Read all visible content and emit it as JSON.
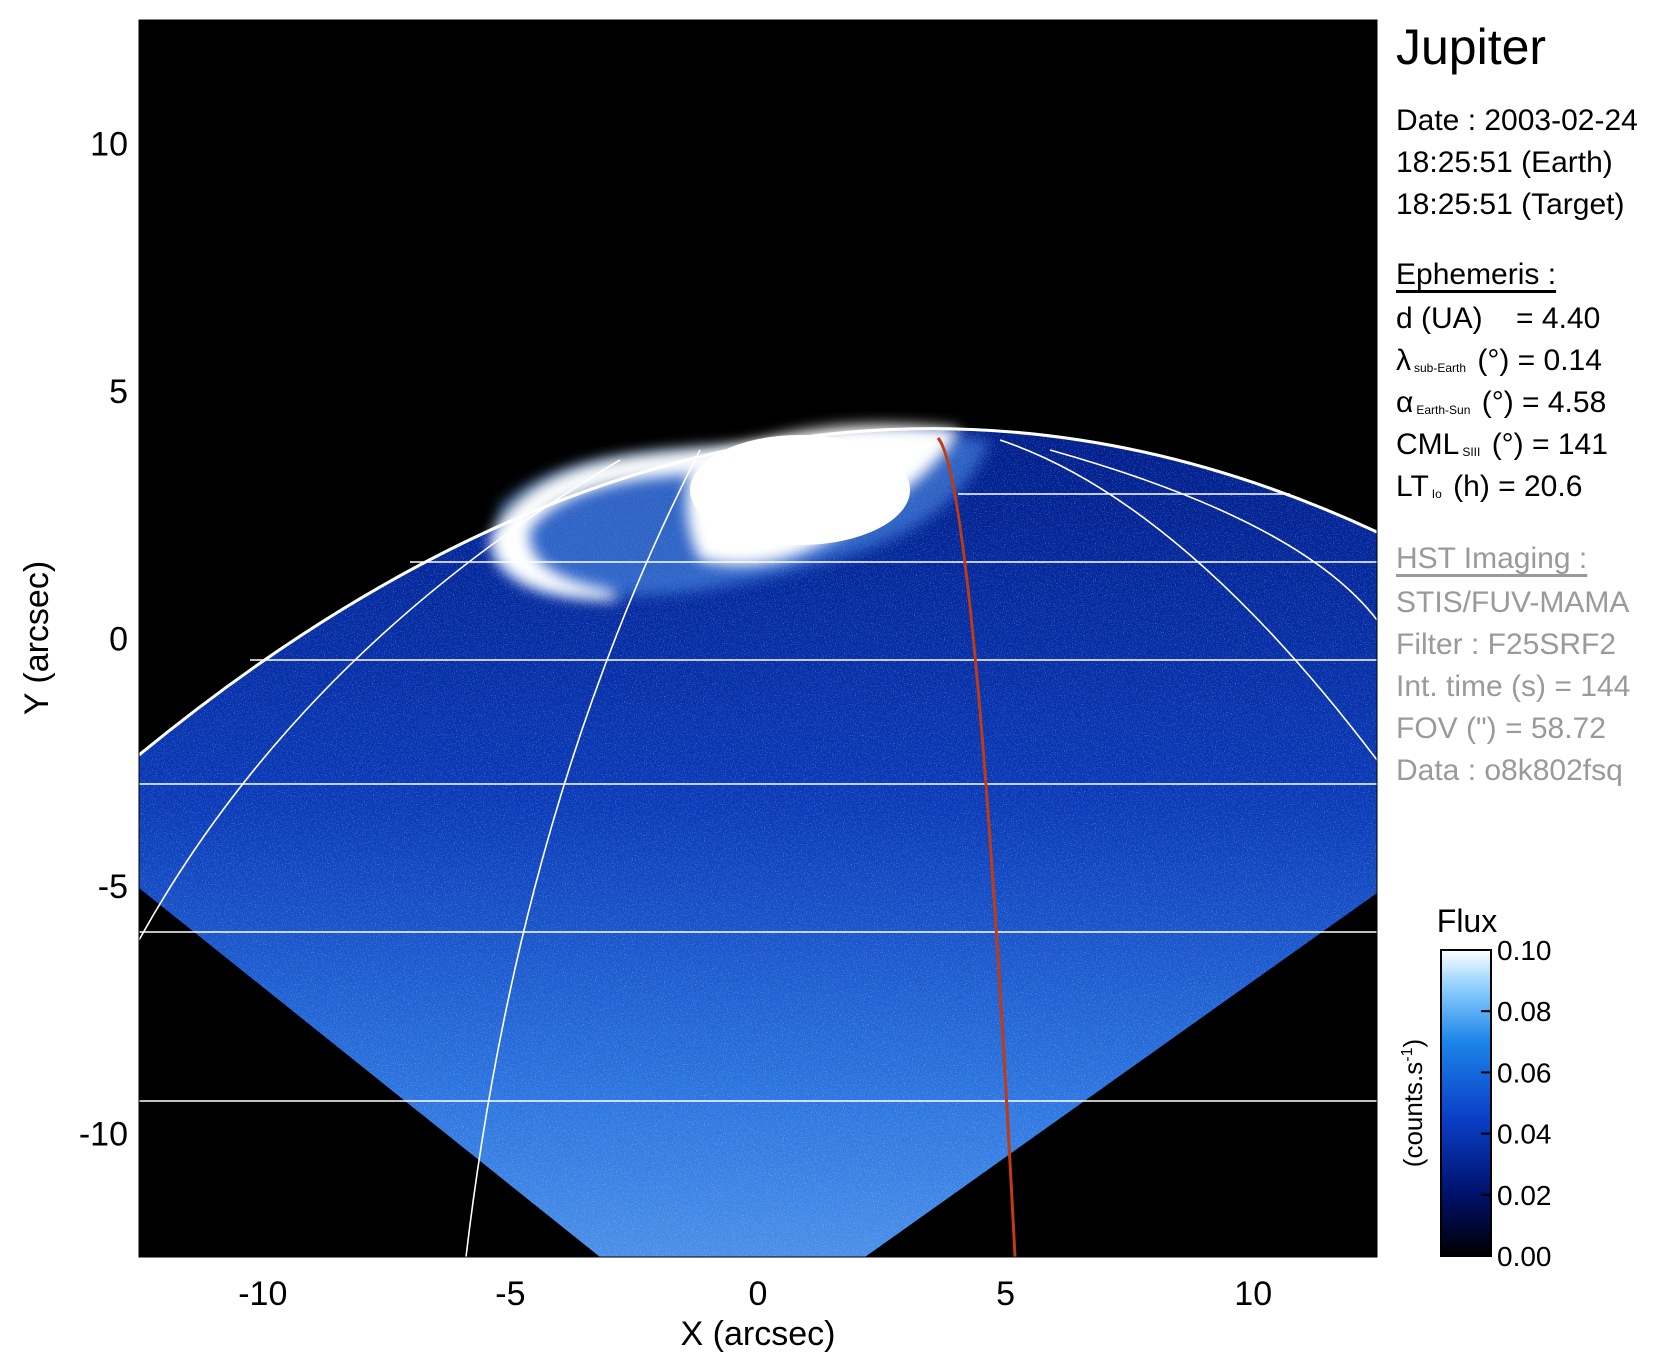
{
  "panel": {
    "planet": "Jupiter",
    "date": "Date : 2003-02-24",
    "time_earth": "18:25:51 (Earth)",
    "time_target": "18:25:51 (Target)",
    "ephemeris_header": "Ephemeris :",
    "ephemeris": [
      {
        "sym": "d (UA)",
        "sub": "",
        "rest": "    = 4.40"
      },
      {
        "sym": "λ",
        "sub": "sub-Earth",
        "rest": " (°) = 0.14"
      },
      {
        "sym": "α",
        "sub": "Earth-Sun",
        "rest": " (°) = 4.58"
      },
      {
        "sym": "CML",
        "sub": "SIII",
        "rest": " (°) = 141"
      },
      {
        "sym": "LT",
        "sub": "Io",
        "rest": " (h) = 20.6"
      }
    ],
    "hst_header": "HST Imaging :",
    "hst": [
      "STIS/FUV-MAMA",
      "Filter : F25SRF2",
      "Int. time (s) = 144",
      "FOV (\") = 58.72",
      "Data : o8k802fsq"
    ]
  },
  "chart_data": {
    "type": "heatmap",
    "title": "",
    "xlabel": "X (arcsec)",
    "ylabel": "Y (arcsec)",
    "xlim": [
      -12.5,
      12.5
    ],
    "ylim": [
      -12.5,
      12.5
    ],
    "xticks": [
      -10,
      -5,
      0,
      5,
      10
    ],
    "yticks": [
      -10,
      -5,
      0,
      5,
      10
    ],
    "colorbar": {
      "title": "Flux",
      "label": "(counts.s-1)",
      "range": [
        0.0,
        0.1
      ],
      "ticks": [
        "0.10",
        "0.08",
        "0.06",
        "0.04",
        "0.02",
        "0.00"
      ],
      "colors": [
        "#000000",
        "#00106a",
        "#0a3fc8",
        "#1c84e8",
        "#8fd0ff",
        "#ffffff"
      ]
    },
    "overlay": {
      "planet_limb_color": "#ffffff",
      "io_footpath_color": "#c23a10",
      "grid": true
    }
  }
}
